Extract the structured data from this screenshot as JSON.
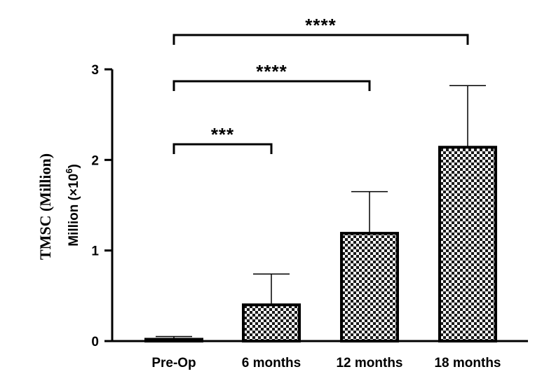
{
  "chart_data": {
    "type": "bar",
    "categories": [
      "Pre-Op",
      "6 months",
      "12 months",
      "18 months"
    ],
    "values": [
      0.02,
      0.4,
      1.19,
      2.14
    ],
    "error_upper": [
      0.05,
      0.74,
      1.65,
      2.82
    ],
    "ylim": [
      0,
      3
    ],
    "yticks": [
      "0",
      "1",
      "2",
      "3"
    ],
    "ylabel_outer": "TMSC (Million)",
    "ylabel_inner_main": "Million (×10",
    "ylabel_inner_sup": "6",
    "ylabel_inner_close": ")",
    "bar_fill": "checkerboard",
    "colors": {
      "bar_dark": "#1a1a1a",
      "bar_light": "#ffffff",
      "axis": "#000000"
    },
    "significance": [
      {
        "from": 0,
        "to": 1,
        "label": "***"
      },
      {
        "from": 0,
        "to": 2,
        "label": "****"
      },
      {
        "from": 0,
        "to": 3,
        "label": "****"
      }
    ]
  }
}
